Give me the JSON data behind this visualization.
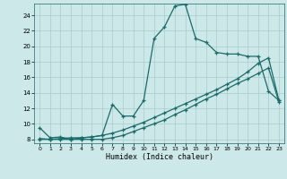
{
  "xlabel": "Humidex (Indice chaleur)",
  "bg_color": "#cce8e8",
  "grid_color": "#aacccc",
  "line_color": "#1a6b6b",
  "xlim": [
    -0.5,
    23.5
  ],
  "ylim": [
    7.5,
    25.5
  ],
  "xticks": [
    0,
    1,
    2,
    3,
    4,
    5,
    6,
    7,
    8,
    9,
    10,
    11,
    12,
    13,
    14,
    15,
    16,
    17,
    18,
    19,
    20,
    21,
    22,
    23
  ],
  "yticks": [
    8,
    10,
    12,
    14,
    16,
    18,
    20,
    22,
    24
  ],
  "series1_x": [
    0,
    1,
    2,
    3,
    4,
    5,
    6,
    7,
    8,
    9,
    10,
    11,
    12,
    13,
    14,
    15,
    16,
    17,
    18,
    19,
    20,
    21,
    22,
    23
  ],
  "series1_y": [
    9.5,
    8.2,
    8.3,
    8.0,
    8.2,
    8.3,
    8.5,
    12.5,
    11.0,
    11.0,
    13.0,
    21.0,
    22.5,
    25.2,
    25.4,
    21.0,
    20.5,
    19.2,
    19.0,
    19.0,
    18.7,
    18.7,
    14.2,
    13.0
  ],
  "series2_x": [
    0,
    1,
    2,
    3,
    4,
    5,
    6,
    7,
    8,
    9,
    10,
    11,
    12,
    13,
    14,
    15,
    16,
    17,
    18,
    19,
    20,
    21,
    22,
    23
  ],
  "series2_y": [
    8.1,
    8.0,
    8.1,
    8.2,
    8.2,
    8.3,
    8.5,
    8.8,
    9.2,
    9.7,
    10.2,
    10.8,
    11.4,
    12.0,
    12.6,
    13.2,
    13.8,
    14.4,
    15.1,
    15.8,
    16.7,
    17.8,
    18.5,
    13.0
  ],
  "series3_x": [
    0,
    1,
    2,
    3,
    4,
    5,
    6,
    7,
    8,
    9,
    10,
    11,
    12,
    13,
    14,
    15,
    16,
    17,
    18,
    19,
    20,
    21,
    22,
    23
  ],
  "series3_y": [
    8.0,
    8.0,
    8.0,
    8.0,
    8.0,
    8.0,
    8.0,
    8.2,
    8.5,
    9.0,
    9.5,
    10.0,
    10.5,
    11.2,
    11.8,
    12.5,
    13.2,
    13.8,
    14.5,
    15.2,
    15.8,
    16.5,
    17.2,
    12.8
  ]
}
